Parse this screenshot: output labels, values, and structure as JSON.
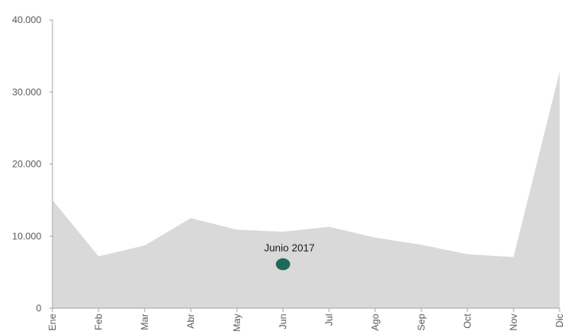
{
  "chart_data": {
    "type": "area",
    "title": "",
    "categories": [
      "Ene",
      "Feb",
      "Mar",
      "Abr",
      "May",
      "Jun",
      "Jul",
      "Ago",
      "Sep",
      "Oct",
      "Nov",
      "Dic"
    ],
    "series": [
      {
        "values": [
          15000,
          7200,
          8700,
          12500,
          10900,
          10600,
          11300,
          9800,
          8800,
          7500,
          7100,
          32800
        ],
        "color": "#d9d9d9"
      }
    ],
    "ylim": [
      0,
      40000
    ],
    "yticks": [
      0,
      10000,
      20000,
      30000,
      40000
    ],
    "ytick_labels": [
      "0",
      "10.000",
      "20.000",
      "30.000",
      "40.000"
    ],
    "xlabel": "",
    "ylabel": "",
    "grid": false,
    "annotation": {
      "text": "Junio 2017",
      "category": "Jun",
      "value": 6100,
      "color": "#1e6a5a"
    },
    "title_color": "#1d7a6a"
  }
}
